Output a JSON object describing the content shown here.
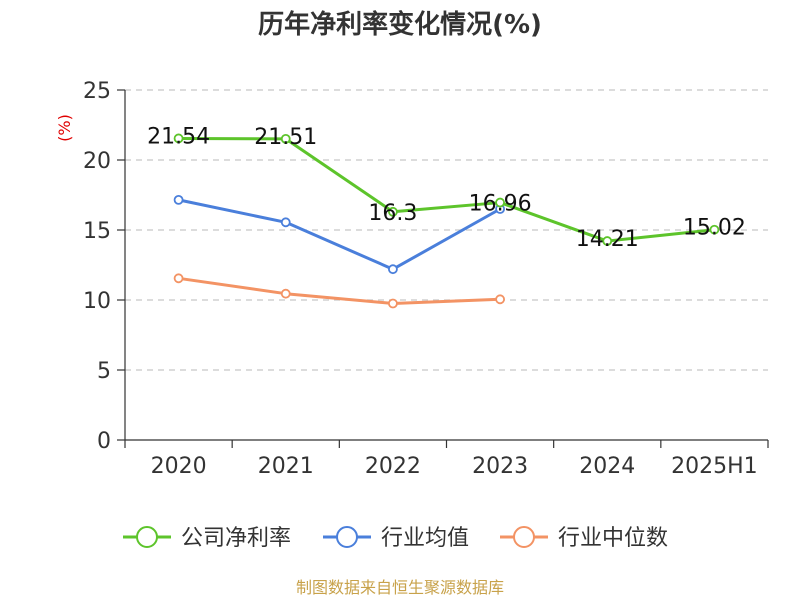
{
  "chart_data": {
    "type": "line",
    "title": "历年净利率变化情况(%)",
    "ylabel": "(%)",
    "xlabel": "",
    "categories": [
      "2020",
      "2021",
      "2022",
      "2023",
      "2024",
      "2025H1"
    ],
    "ylim": [
      0,
      25
    ],
    "yticks": [
      0,
      5,
      10,
      15,
      20,
      25
    ],
    "grid": true,
    "legend_position": "bottom",
    "series": [
      {
        "name": "公司净利率",
        "color": "#5dc42b",
        "values": [
          21.54,
          21.51,
          16.3,
          16.96,
          14.21,
          15.02
        ],
        "labels": [
          "21.54",
          "21.51",
          "16.3",
          "16.96",
          "14.21",
          "15.02"
        ]
      },
      {
        "name": "行业均值",
        "color": "#4a7fdb",
        "values": [
          17.15,
          15.55,
          12.2,
          16.5,
          null,
          null
        ]
      },
      {
        "name": "行业中位数",
        "color": "#f39364",
        "values": [
          11.55,
          10.45,
          9.75,
          10.05,
          null,
          null
        ]
      }
    ],
    "source": "制图数据来自恒生聚源数据库"
  }
}
